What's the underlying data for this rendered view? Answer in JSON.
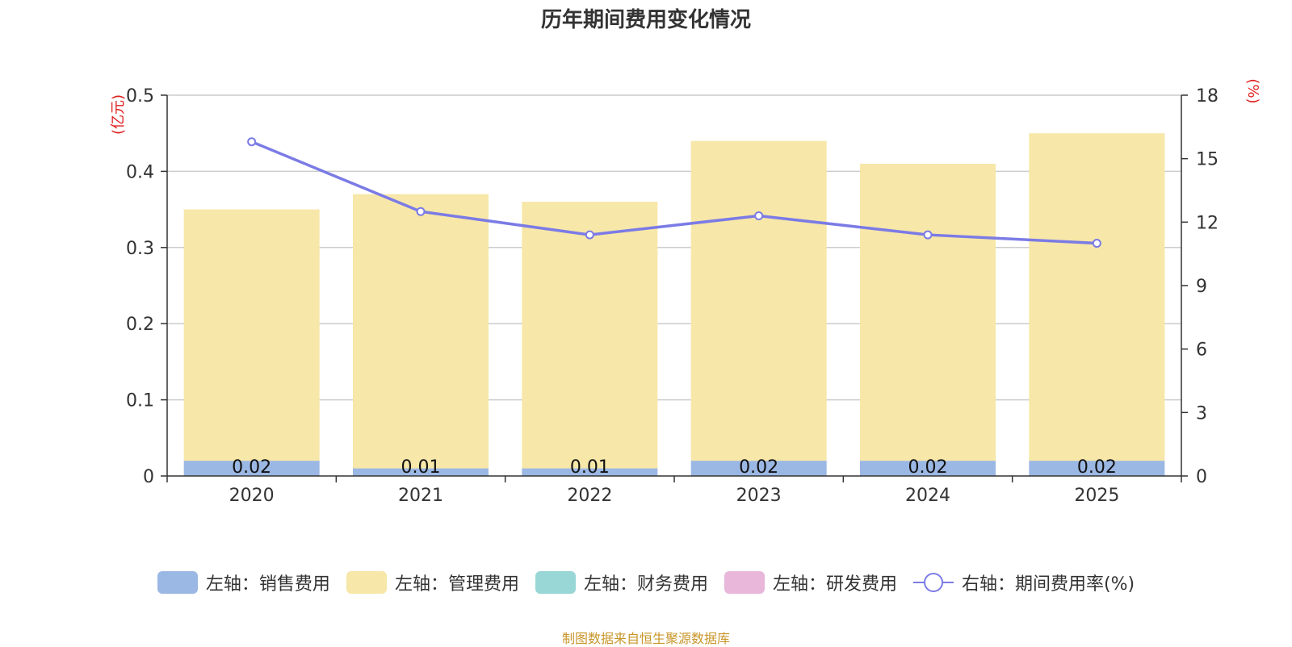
{
  "title": "历年期间费用变化情况",
  "footer": "制图数据来自恒生聚源数据库",
  "colors": {
    "sales": "#9bb7e3",
    "admin": "#f7e7a8",
    "finance": "#99d6d6",
    "rd": "#e8b7d9",
    "line": "#7b7be6",
    "axis_unit": "#e02020",
    "grid": "#cccccc",
    "axis": "#333333"
  },
  "legend": [
    {
      "key": "sales",
      "label": "左轴：销售费用",
      "kind": "bar"
    },
    {
      "key": "admin",
      "label": "左轴：管理费用",
      "kind": "bar"
    },
    {
      "key": "finance",
      "label": "左轴：财务费用",
      "kind": "bar"
    },
    {
      "key": "rd",
      "label": "左轴：研发费用",
      "kind": "bar"
    },
    {
      "key": "line",
      "label": "右轴：期间费用率(%)",
      "kind": "line"
    }
  ],
  "chart_data": {
    "type": "bar",
    "stacked": true,
    "title": "历年期间费用变化情况",
    "categories": [
      "2020",
      "2021",
      "2022",
      "2023",
      "2024",
      "2025"
    ],
    "left_axis": {
      "unit": "(亿元)",
      "min": 0,
      "max": 0.5,
      "ticks": [
        0,
        0.1,
        0.2,
        0.3,
        0.4,
        0.5
      ],
      "tick_labels": [
        "0",
        "0.1",
        "0.2",
        "0.3",
        "0.4",
        "0.5"
      ]
    },
    "right_axis": {
      "unit": "(%)",
      "min": 0,
      "max": 18,
      "ticks": [
        0,
        3,
        6,
        9,
        12,
        15,
        18
      ],
      "tick_labels": [
        "0",
        "3",
        "6",
        "9",
        "12",
        "15",
        "18"
      ]
    },
    "series": [
      {
        "name": "左轴：销售费用",
        "key": "sales",
        "axis": "left",
        "values": [
          0.02,
          0.01,
          0.01,
          0.02,
          0.02,
          0.02
        ],
        "labels": [
          "0.02",
          "0.01",
          "0.01",
          "0.02",
          "0.02",
          "0.02"
        ]
      },
      {
        "name": "左轴：管理费用",
        "key": "admin",
        "axis": "left",
        "values": [
          0.33,
          0.36,
          0.35,
          0.42,
          0.39,
          0.43
        ]
      },
      {
        "name": "左轴：财务费用",
        "key": "finance",
        "axis": "left",
        "values": [
          0,
          0,
          0,
          0,
          0,
          0
        ]
      },
      {
        "name": "左轴：研发费用",
        "key": "rd",
        "axis": "left",
        "values": [
          0,
          0,
          0,
          0,
          0,
          0
        ]
      },
      {
        "name": "右轴：期间费用率(%)",
        "key": "line",
        "axis": "right",
        "type": "line",
        "values": [
          15.8,
          12.5,
          11.4,
          12.3,
          11.4,
          11.0
        ]
      }
    ]
  }
}
